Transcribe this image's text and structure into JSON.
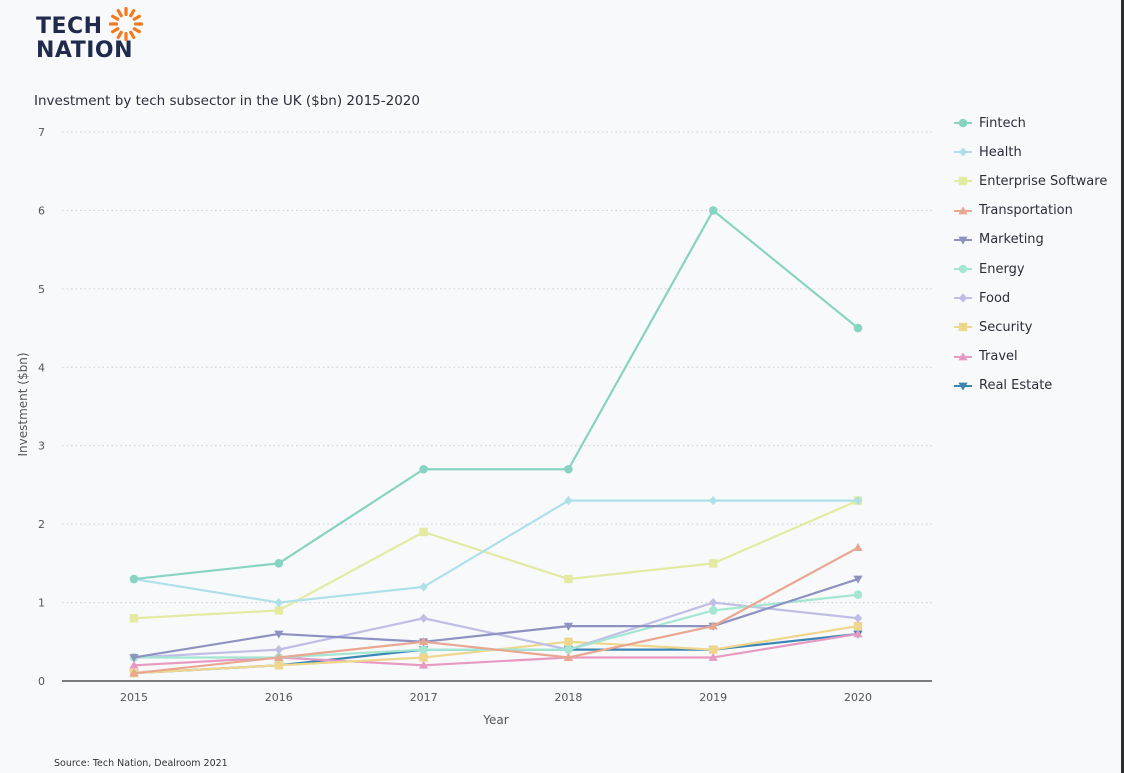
{
  "logo": {
    "line1": "TECH",
    "line2": "NATION"
  },
  "source": "Source: Tech Nation, Dealroom 2021",
  "chart_data": {
    "type": "line",
    "title": "Investment by tech subsector in the UK ($bn) 2015-2020",
    "xlabel": "Year",
    "ylabel": "Investment ($bn)",
    "x": [
      "2015",
      "2016",
      "2017",
      "2018",
      "2019",
      "2020"
    ],
    "ylim": [
      0,
      7
    ],
    "yticks": [
      0,
      1,
      2,
      3,
      4,
      5,
      6,
      7
    ],
    "grid": true,
    "legend_position": "right",
    "series": [
      {
        "name": "Fintech",
        "color": "#88d3c2",
        "marker": "circle",
        "values": [
          1.3,
          1.5,
          2.7,
          2.7,
          6.0,
          4.5
        ]
      },
      {
        "name": "Health",
        "color": "#aee0ea",
        "marker": "diamond",
        "values": [
          1.3,
          1.0,
          1.2,
          2.3,
          2.3,
          2.3
        ]
      },
      {
        "name": "Enterprise Software",
        "color": "#e3eaa2",
        "marker": "square",
        "values": [
          0.8,
          0.9,
          1.9,
          1.3,
          1.5,
          2.3
        ]
      },
      {
        "name": "Transportation",
        "color": "#e9a690",
        "marker": "triangle-up",
        "values": [
          0.1,
          0.3,
          0.5,
          0.3,
          0.7,
          1.7
        ]
      },
      {
        "name": "Marketing",
        "color": "#8e92c0",
        "marker": "triangle-down",
        "values": [
          0.3,
          0.6,
          0.5,
          0.7,
          0.7,
          1.3
        ]
      },
      {
        "name": "Energy",
        "color": "#a5e6d2",
        "marker": "circle",
        "values": [
          0.3,
          0.3,
          0.4,
          0.4,
          0.9,
          1.1
        ]
      },
      {
        "name": "Food",
        "color": "#bfbfe6",
        "marker": "diamond",
        "values": [
          0.3,
          0.4,
          0.8,
          0.4,
          1.0,
          0.8
        ]
      },
      {
        "name": "Security",
        "color": "#eed78d",
        "marker": "square",
        "values": [
          0.1,
          0.2,
          0.3,
          0.5,
          0.4,
          0.7
        ]
      },
      {
        "name": "Travel",
        "color": "#e79ac1",
        "marker": "triangle-up",
        "values": [
          0.2,
          0.3,
          0.2,
          0.3,
          0.3,
          0.6
        ]
      },
      {
        "name": "Real Estate",
        "color": "#3c86b4",
        "marker": "triangle-down",
        "values": [
          0.1,
          0.2,
          0.4,
          0.4,
          0.4,
          0.6
        ]
      }
    ]
  }
}
